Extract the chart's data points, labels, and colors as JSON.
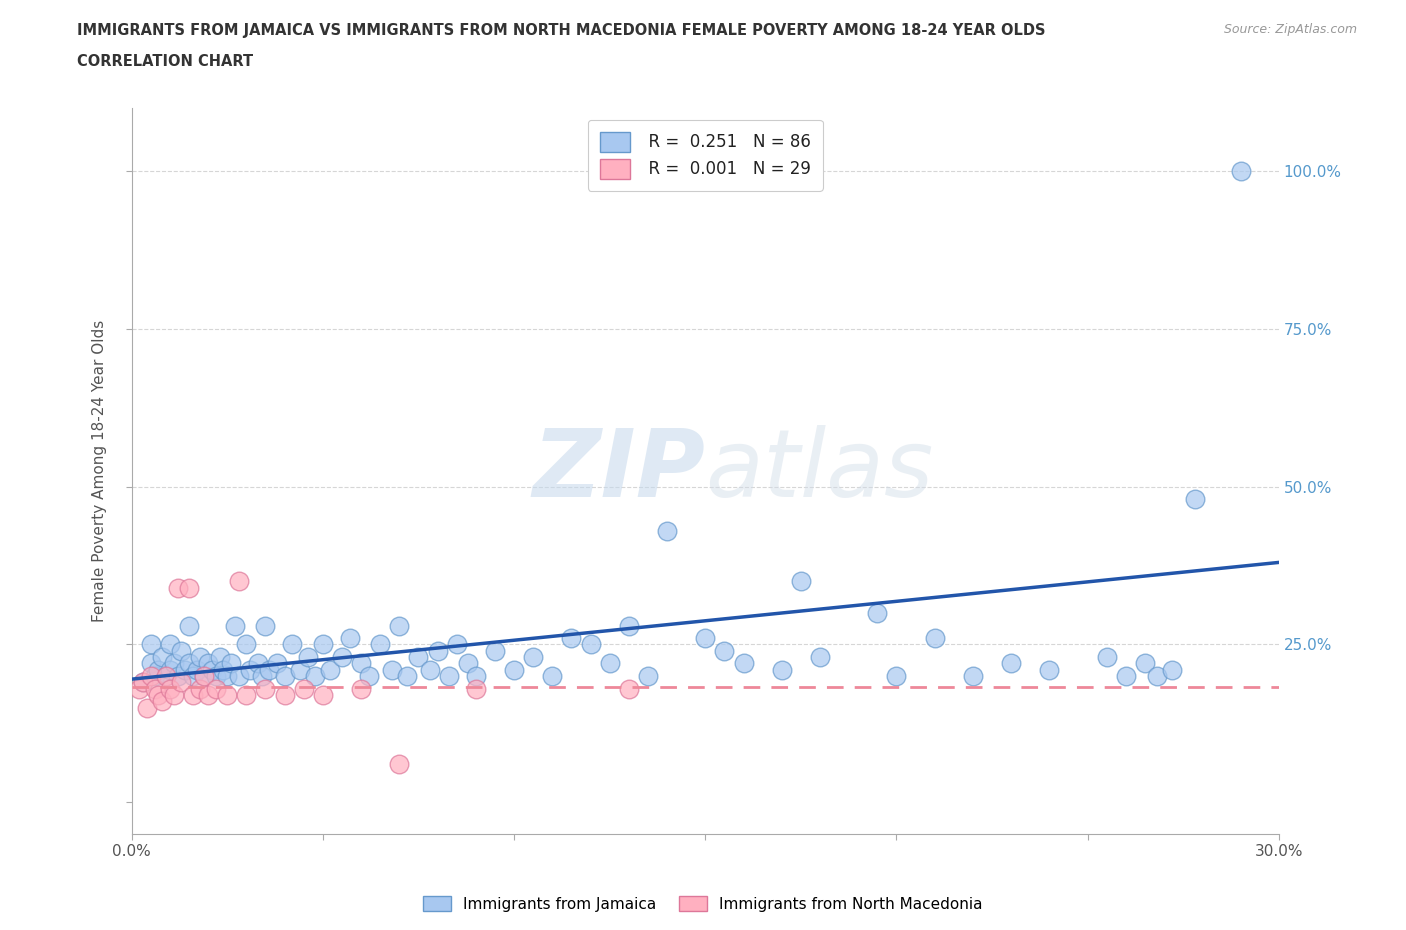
{
  "title_line1": "IMMIGRANTS FROM JAMAICA VS IMMIGRANTS FROM NORTH MACEDONIA FEMALE POVERTY AMONG 18-24 YEAR OLDS",
  "title_line2": "CORRELATION CHART",
  "source_text": "Source: ZipAtlas.com",
  "ylabel": "Female Poverty Among 18-24 Year Olds",
  "xlim": [
    0.0,
    0.3
  ],
  "ylim": [
    -0.05,
    1.1
  ],
  "jamaica_color": "#a8c8f0",
  "jamaica_edge_color": "#6699cc",
  "north_mac_color": "#ffb0c0",
  "north_mac_edge_color": "#dd7799",
  "jamaica_R": 0.251,
  "jamaica_N": 86,
  "north_mac_R": 0.001,
  "north_mac_N": 29,
  "watermark_zip": "ZIP",
  "watermark_atlas": "atlas",
  "legend_jamaica": "Immigrants from Jamaica",
  "legend_north_mac": "Immigrants from North Macedonia",
  "jamaica_trend_color": "#2255aa",
  "north_mac_trend_color": "#ee8899",
  "background_color": "#ffffff",
  "grid_color": "#cccccc",
  "jamaica_x": [
    0.003,
    0.005,
    0.005,
    0.006,
    0.007,
    0.008,
    0.009,
    0.01,
    0.01,
    0.011,
    0.012,
    0.013,
    0.014,
    0.015,
    0.015,
    0.016,
    0.017,
    0.018,
    0.019,
    0.02,
    0.021,
    0.022,
    0.023,
    0.024,
    0.025,
    0.026,
    0.027,
    0.028,
    0.03,
    0.031,
    0.033,
    0.034,
    0.035,
    0.036,
    0.038,
    0.04,
    0.042,
    0.044,
    0.046,
    0.048,
    0.05,
    0.052,
    0.055,
    0.057,
    0.06,
    0.062,
    0.065,
    0.068,
    0.07,
    0.072,
    0.075,
    0.078,
    0.08,
    0.083,
    0.085,
    0.088,
    0.09,
    0.095,
    0.1,
    0.105,
    0.11,
    0.115,
    0.12,
    0.125,
    0.13,
    0.135,
    0.14,
    0.15,
    0.155,
    0.16,
    0.17,
    0.175,
    0.18,
    0.195,
    0.2,
    0.21,
    0.22,
    0.23,
    0.24,
    0.255,
    0.26,
    0.265,
    0.268,
    0.272,
    0.278,
    0.29
  ],
  "jamaica_y": [
    0.19,
    0.22,
    0.25,
    0.2,
    0.21,
    0.23,
    0.2,
    0.21,
    0.25,
    0.22,
    0.2,
    0.24,
    0.21,
    0.22,
    0.28,
    0.2,
    0.21,
    0.23,
    0.2,
    0.22,
    0.21,
    0.2,
    0.23,
    0.21,
    0.2,
    0.22,
    0.28,
    0.2,
    0.25,
    0.21,
    0.22,
    0.2,
    0.28,
    0.21,
    0.22,
    0.2,
    0.25,
    0.21,
    0.23,
    0.2,
    0.25,
    0.21,
    0.23,
    0.26,
    0.22,
    0.2,
    0.25,
    0.21,
    0.28,
    0.2,
    0.23,
    0.21,
    0.24,
    0.2,
    0.25,
    0.22,
    0.2,
    0.24,
    0.21,
    0.23,
    0.2,
    0.26,
    0.25,
    0.22,
    0.28,
    0.2,
    0.43,
    0.26,
    0.24,
    0.22,
    0.21,
    0.35,
    0.23,
    0.3,
    0.2,
    0.26,
    0.2,
    0.22,
    0.21,
    0.23,
    0.2,
    0.22,
    0.2,
    0.21,
    0.48,
    1.0
  ],
  "north_mac_x": [
    0.002,
    0.003,
    0.004,
    0.005,
    0.006,
    0.007,
    0.008,
    0.009,
    0.01,
    0.011,
    0.012,
    0.013,
    0.015,
    0.016,
    0.018,
    0.019,
    0.02,
    0.022,
    0.025,
    0.028,
    0.03,
    0.035,
    0.04,
    0.045,
    0.05,
    0.06,
    0.07,
    0.09,
    0.13
  ],
  "north_mac_y": [
    0.18,
    0.19,
    0.15,
    0.2,
    0.18,
    0.17,
    0.16,
    0.2,
    0.18,
    0.17,
    0.34,
    0.19,
    0.34,
    0.17,
    0.18,
    0.2,
    0.17,
    0.18,
    0.17,
    0.35,
    0.17,
    0.18,
    0.17,
    0.18,
    0.17,
    0.18,
    0.06,
    0.18,
    0.18
  ],
  "jam_trend_x0": 0.0,
  "jam_trend_y0": 0.195,
  "jam_trend_x1": 0.3,
  "jam_trend_y1": 0.38,
  "mac_trend_x0": 0.0,
  "mac_trend_y0": 0.183,
  "mac_trend_x1": 0.3,
  "mac_trend_y1": 0.183
}
